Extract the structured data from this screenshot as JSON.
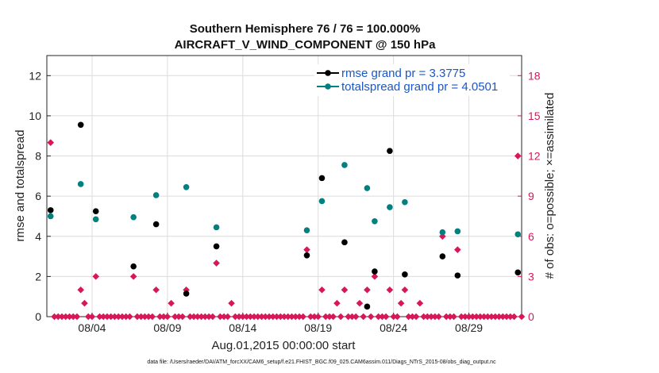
{
  "chart_data": {
    "type": "scatter",
    "title": "Southern Hemisphere 76 / 76 = 100.000%",
    "subtitle": "AIRCRAFT_V_WIND_COMPONENT @ 150 hPa",
    "xlabel": "Aug.01,2015 00:00:00 start",
    "ylabel": "rmse and totalspread",
    "ylabel_right": "# of obs: o=possible; ×=assimilated",
    "footer": "data file: /Users/raeder/DAI/ATM_forcXX/CAM6_setup/f.e21.FHIST_BGC.f09_025.CAM6assim.011/Diags_NTrS_2015-08/obs_diag_output.nc",
    "xlim": [
      1,
      32.5
    ],
    "ylim": [
      0,
      13
    ],
    "ylim_right": [
      0,
      19.5
    ],
    "x_ticks": [
      {
        "value": 4,
        "label": "08/04"
      },
      {
        "value": 9,
        "label": "08/09"
      },
      {
        "value": 14,
        "label": "08/14"
      },
      {
        "value": 19,
        "label": "08/19"
      },
      {
        "value": 24,
        "label": "08/24"
      },
      {
        "value": 29,
        "label": "08/29"
      }
    ],
    "y_ticks": [
      {
        "value": 0,
        "label": "0"
      },
      {
        "value": 2,
        "label": "2"
      },
      {
        "value": 4,
        "label": "4"
      },
      {
        "value": 6,
        "label": "6"
      },
      {
        "value": 8,
        "label": "8"
      },
      {
        "value": 10,
        "label": "10"
      },
      {
        "value": 12,
        "label": "12"
      }
    ],
    "y_ticks_right": [
      {
        "value": 0,
        "label": "0"
      },
      {
        "value": 3,
        "label": "3"
      },
      {
        "value": 6,
        "label": "6"
      },
      {
        "value": 9,
        "label": "9"
      },
      {
        "value": 12,
        "label": "12"
      },
      {
        "value": 15,
        "label": "15"
      },
      {
        "value": 18,
        "label": "18"
      }
    ],
    "grid": true,
    "legend_position": "top-right",
    "series": [
      {
        "name": "rmse grand pr = 3.3775",
        "color": "#000000",
        "points": [
          [
            1.25,
            5.3
          ],
          [
            3.25,
            9.55
          ],
          [
            4.25,
            5.25
          ],
          [
            6.75,
            2.5
          ],
          [
            8.25,
            4.6
          ],
          [
            10.25,
            1.15
          ],
          [
            12.25,
            3.5
          ],
          [
            18.25,
            3.05
          ],
          [
            19.25,
            6.9
          ],
          [
            20.75,
            3.7
          ],
          [
            22.25,
            0.5
          ],
          [
            22.75,
            2.25
          ],
          [
            23.75,
            8.25
          ],
          [
            24.75,
            2.1
          ],
          [
            27.25,
            3.0
          ],
          [
            28.25,
            2.05
          ],
          [
            32.25,
            2.2
          ]
        ]
      },
      {
        "name": "totalspread grand pr = 4.0501",
        "color": "#00817f",
        "points": [
          [
            1.25,
            5.0
          ],
          [
            3.25,
            6.6
          ],
          [
            4.25,
            4.85
          ],
          [
            6.75,
            4.95
          ],
          [
            8.25,
            6.05
          ],
          [
            10.25,
            6.45
          ],
          [
            12.25,
            4.45
          ],
          [
            18.25,
            4.3
          ],
          [
            19.25,
            5.75
          ],
          [
            20.75,
            7.55
          ],
          [
            22.25,
            6.4
          ],
          [
            22.75,
            4.75
          ],
          [
            23.75,
            5.45
          ],
          [
            24.75,
            5.7
          ],
          [
            27.25,
            4.2
          ],
          [
            28.25,
            4.25
          ],
          [
            32.25,
            4.1
          ]
        ]
      }
    ],
    "obs_counts": {
      "color": "#d6185a",
      "start": 1.25,
      "step": 0.25,
      "nonzero": {
        "1.25": 13,
        "3.25": 2,
        "3.5": 1,
        "4.25": 3,
        "6.75": 3,
        "8.25": 2,
        "9.25": 1,
        "10.25": 2,
        "12.25": 4,
        "13.25": 1,
        "18.25": 5,
        "19.25": 2,
        "20.25": 1,
        "20.75": 2,
        "21.75": 1,
        "22.25": 2,
        "22.75": 3,
        "23.75": 2,
        "24.5": 1,
        "24.75": 2,
        "25.75": 1,
        "27.25": 6,
        "28.25": 5,
        "32.25": 12
      },
      "end": 32.5
    }
  }
}
